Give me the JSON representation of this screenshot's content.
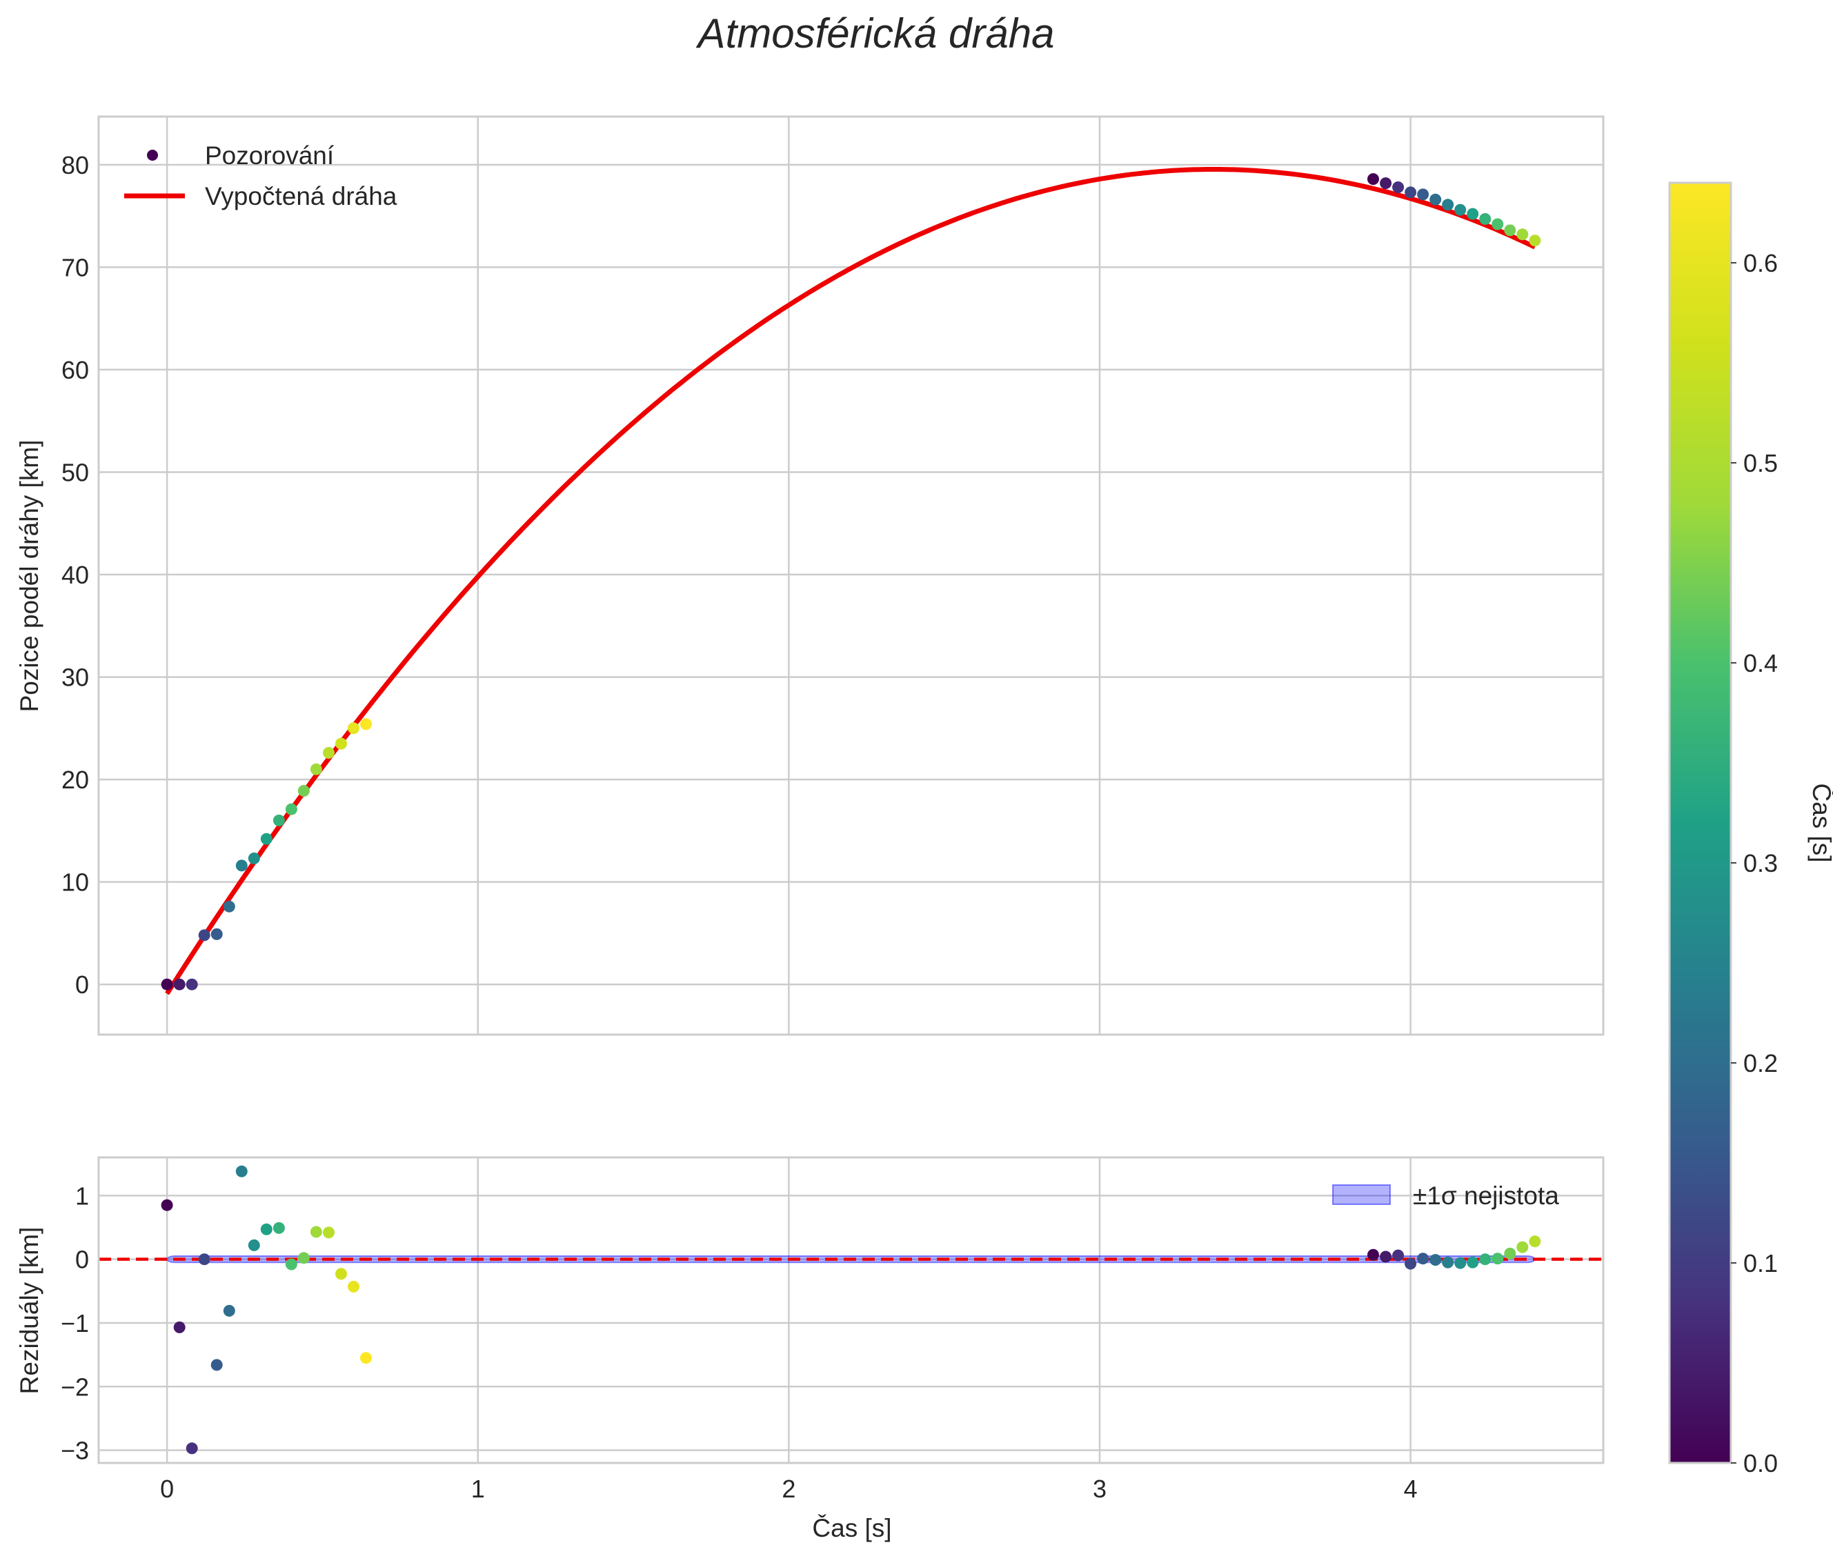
{
  "title": "Atmosférická dráha",
  "chart_data": [
    {
      "type": "line",
      "panel": "main",
      "title": "Atmosférická dráha",
      "xlabel": "",
      "ylabel": "Pozice podél dráhy [km]",
      "xlim": [
        -0.22,
        4.62
      ],
      "ylim": [
        -4.9,
        84.7
      ],
      "xticks": [
        0,
        1,
        2,
        3,
        4
      ],
      "yticks": [
        0,
        10,
        20,
        30,
        40,
        50,
        60,
        70,
        80
      ],
      "grid": true,
      "legend_position": "top-left",
      "series": [
        {
          "name": "Pozorování",
          "type": "scatter",
          "colormap": "viridis",
          "x": [
            0.0,
            0.04,
            0.08,
            0.12,
            0.16,
            0.2,
            0.24,
            0.28,
            0.32,
            0.36,
            0.4,
            0.44,
            0.48,
            0.52,
            0.56,
            0.6,
            0.64,
            3.88,
            3.92,
            3.96,
            4.0,
            4.04,
            4.08,
            4.12,
            4.16,
            4.2,
            4.24,
            4.28,
            4.32,
            4.36,
            4.4
          ],
          "y": [
            0.0,
            0.0,
            0.0,
            4.8,
            4.9,
            7.6,
            11.6,
            12.3,
            14.2,
            16.0,
            17.1,
            18.9,
            21.0,
            22.6,
            23.5,
            25.0,
            25.4,
            78.6,
            78.2,
            77.8,
            77.3,
            77.1,
            76.6,
            76.1,
            75.6,
            75.2,
            74.7,
            74.2,
            73.6,
            73.2,
            72.6
          ],
          "c": [
            0.0,
            0.04,
            0.08,
            0.12,
            0.16,
            0.2,
            0.24,
            0.28,
            0.32,
            0.36,
            0.4,
            0.44,
            0.48,
            0.52,
            0.56,
            0.6,
            0.64,
            0.0,
            0.04,
            0.08,
            0.12,
            0.16,
            0.2,
            0.24,
            0.28,
            0.32,
            0.36,
            0.4,
            0.44,
            0.48,
            0.52
          ]
        },
        {
          "name": "Vypočtená dráha",
          "type": "line",
          "color": "#ee0000",
          "model": "quadratic",
          "coefficients": [
            -0.9,
            47.8,
            -7.1
          ],
          "x_range": [
            0.0,
            4.4
          ]
        }
      ]
    },
    {
      "type": "scatter",
      "panel": "residuals",
      "xlabel": "Čas [s]",
      "ylabel": "Reziduály [km]",
      "xlim": [
        -0.22,
        4.62
      ],
      "ylim": [
        -3.2,
        1.6
      ],
      "xticks": [
        0,
        1,
        2,
        3,
        4
      ],
      "yticks": [
        -3,
        -2,
        -1,
        0,
        1
      ],
      "grid": true,
      "legend_position": "top-right",
      "zero_line": {
        "y": 0,
        "color": "#ee0000",
        "style": "dashed"
      },
      "uncertainty_band": {
        "name": "±1σ nejistota",
        "sigma": 0.05,
        "x_range": [
          0.0,
          4.4
        ],
        "color": "#0000ff"
      },
      "series": [
        {
          "name": "Reziduály",
          "colormap": "viridis",
          "x": [
            0.0,
            0.04,
            0.08,
            0.12,
            0.16,
            0.2,
            0.24,
            0.28,
            0.32,
            0.36,
            0.4,
            0.44,
            0.48,
            0.52,
            0.56,
            0.6,
            0.64,
            3.88,
            3.92,
            3.96,
            4.0,
            4.04,
            4.08,
            4.12,
            4.16,
            4.2,
            4.24,
            4.28,
            4.32,
            4.36,
            4.4
          ],
          "y": [
            0.85,
            -1.07,
            -2.97,
            0.0,
            -1.66,
            -0.81,
            1.38,
            0.22,
            0.47,
            0.49,
            -0.08,
            0.02,
            0.43,
            0.42,
            -0.23,
            -0.43,
            -1.55,
            0.07,
            0.04,
            0.06,
            -0.07,
            0.01,
            -0.01,
            -0.05,
            -0.06,
            -0.05,
            0.0,
            0.01,
            0.09,
            0.19,
            0.28
          ],
          "c": [
            0.0,
            0.04,
            0.08,
            0.12,
            0.16,
            0.2,
            0.24,
            0.28,
            0.32,
            0.36,
            0.4,
            0.44,
            0.48,
            0.52,
            0.56,
            0.6,
            0.64,
            0.0,
            0.04,
            0.08,
            0.12,
            0.16,
            0.2,
            0.24,
            0.28,
            0.32,
            0.36,
            0.4,
            0.44,
            0.48,
            0.52
          ]
        }
      ]
    },
    {
      "type": "colorbar",
      "label": "Čas [s]",
      "colormap": "viridis",
      "range": [
        0.0,
        0.64
      ],
      "ticks": [
        0.0,
        0.1,
        0.2,
        0.3,
        0.4,
        0.5,
        0.6
      ]
    }
  ]
}
